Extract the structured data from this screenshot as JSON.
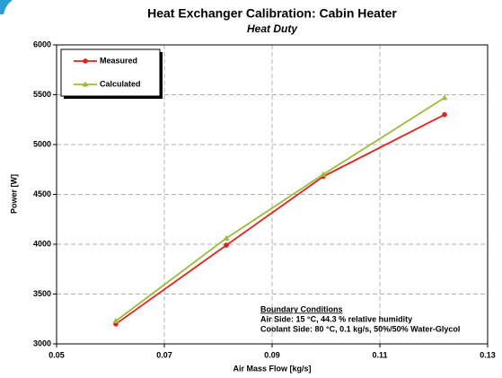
{
  "chart_data": {
    "type": "line",
    "title": "Heat Exchanger Calibration: Cabin Heater",
    "subtitle": "Heat Duty",
    "x_label": "Air Mass Flow [kg/s]",
    "y_label": "Power [W]",
    "series": [
      {
        "name": "Measured",
        "color": "#e5211c",
        "marker": "circle",
        "x": [
          0.061,
          0.0815,
          0.0995,
          0.122
        ],
        "values": [
          3200,
          3990,
          4680,
          5300
        ]
      },
      {
        "name": "Calculated",
        "color": "#9bbb3b",
        "marker": "triangle",
        "x": [
          0.061,
          0.0815,
          0.0995,
          0.122
        ],
        "values": [
          3230,
          4060,
          4700,
          5470
        ]
      }
    ],
    "xlim": [
      0.05,
      0.13
    ],
    "xticks": [
      0.05,
      0.07,
      0.09,
      0.11,
      0.13
    ],
    "ylim": [
      3000,
      6000
    ],
    "yticks": [
      3000,
      3500,
      4000,
      4500,
      5000,
      5500,
      6000
    ],
    "grid": true,
    "legend": "upper left",
    "annotation": {
      "title": "Boundary Conditions",
      "lines": [
        "Air Side: 15 °C,  44.3 % relative humidity",
        "Coolant Side: 80 °C, 0.1 kg/s, 50%/50% Water-Glycol"
      ]
    }
  }
}
